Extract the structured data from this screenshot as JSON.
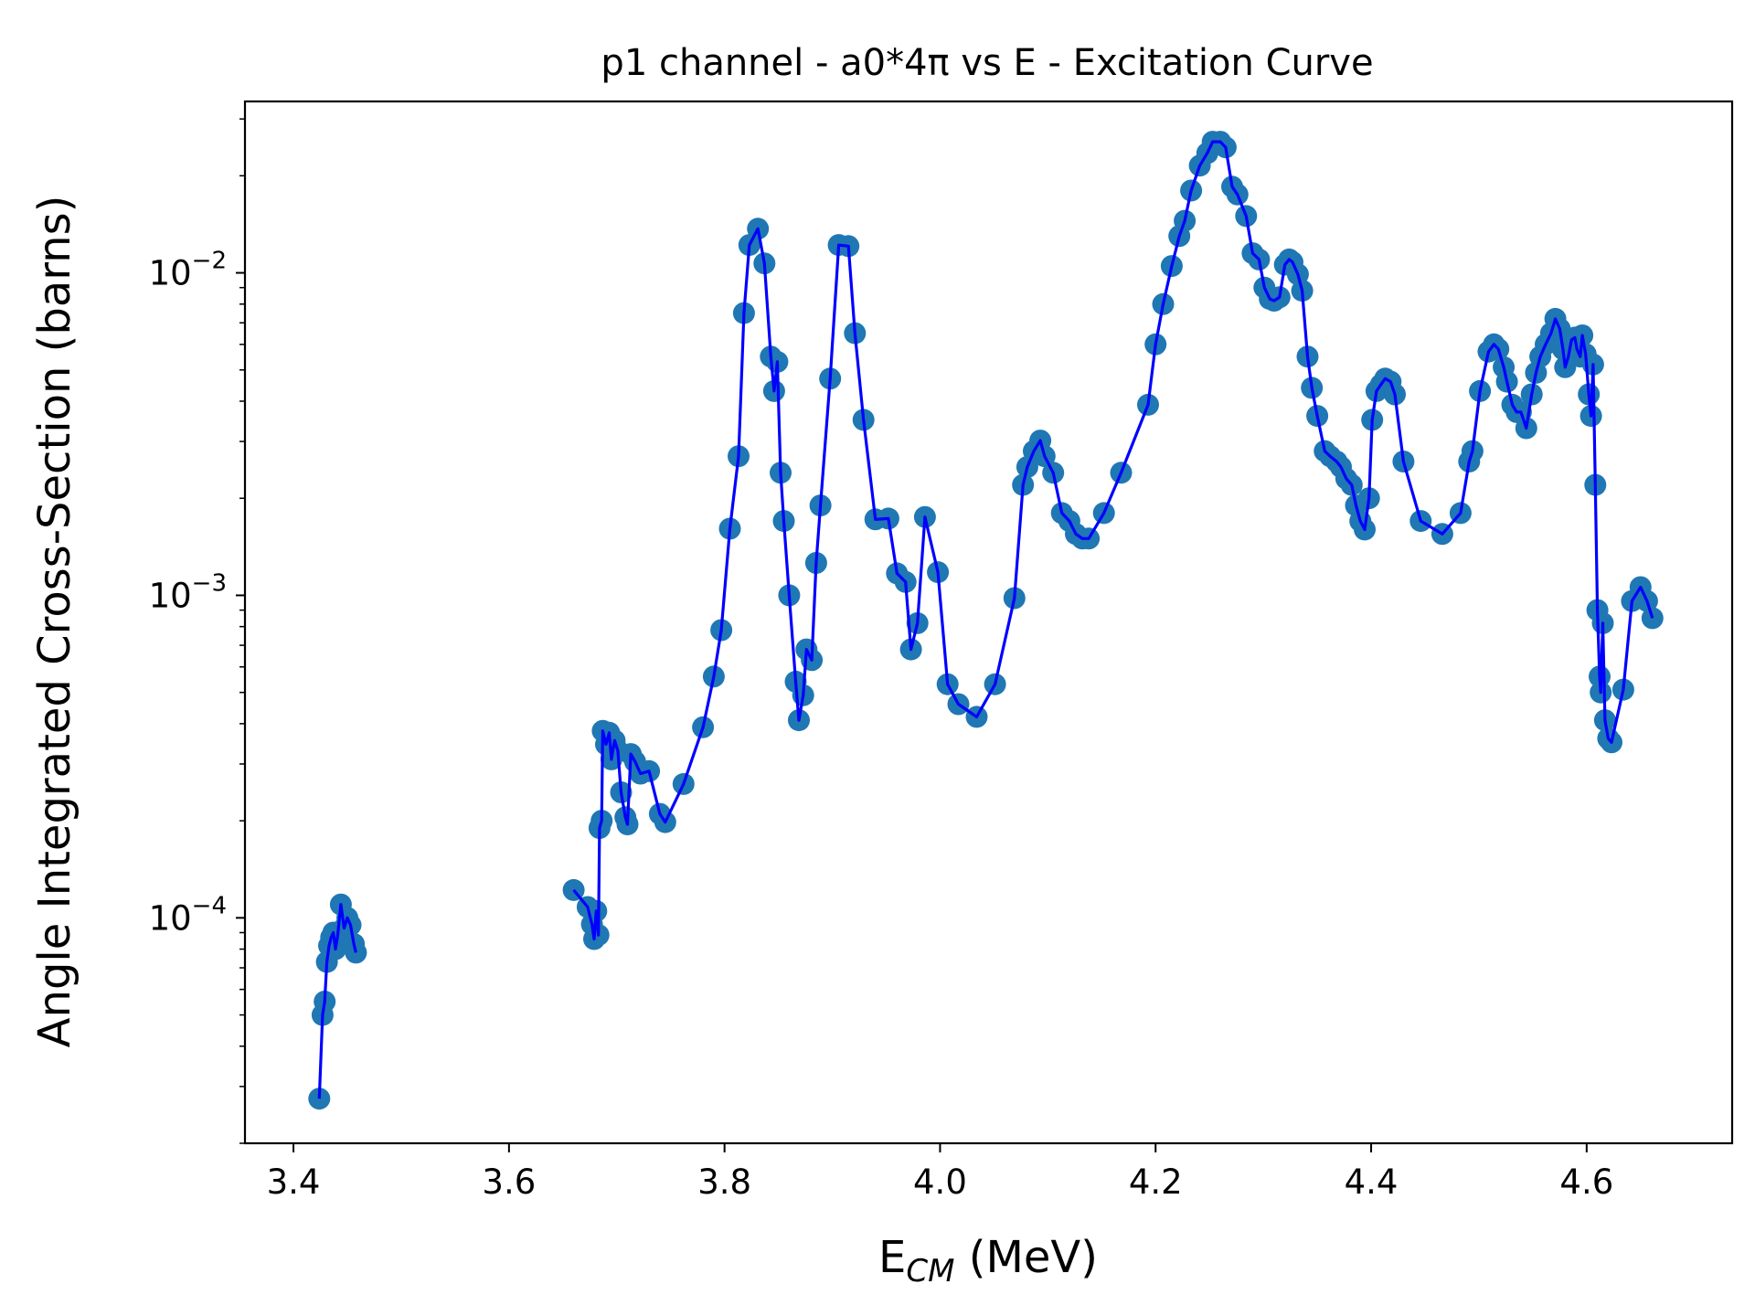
{
  "chart_data": {
    "type": "scatter",
    "title": "p1 channel - a0*4π vs E - Excitation Curve",
    "xlabel_main": "E",
    "xlabel_sub": "CM",
    "xlabel_unit": " (MeV)",
    "ylabel": "Angle Integrated Cross-Section (barns)",
    "xlim": [
      3.355,
      4.735
    ],
    "ylim": [
      2e-05,
      0.034
    ],
    "yscale": "log",
    "grid": false,
    "x_ticks": [
      "3.4",
      "3.6",
      "3.8",
      "4.0",
      "4.2",
      "4.4",
      "4.6"
    ],
    "x_tick_values": [
      3.4,
      3.6,
      3.8,
      4.0,
      4.2,
      4.4,
      4.6
    ],
    "y_ticks": [
      {
        "base": "10",
        "exp": "−4",
        "value": 0.0001
      },
      {
        "base": "10",
        "exp": "−3",
        "value": 0.001
      },
      {
        "base": "10",
        "exp": "−2",
        "value": 0.01
      }
    ],
    "colors": {
      "markers": "#1f77b4",
      "line": "#0000ff",
      "axes": "#000000"
    },
    "series": [
      {
        "role": "markers-and-line",
        "segments": [
          [
            [
              3.424,
              2.75e-05
            ],
            [
              3.427,
              5e-05
            ],
            [
              3.429,
              5.5e-05
            ],
            [
              3.431,
              7.3e-05
            ],
            [
              3.433,
              8.2e-05
            ],
            [
              3.435,
              8.7e-05
            ],
            [
              3.437,
              9e-05
            ],
            [
              3.439,
              8e-05
            ],
            [
              3.441,
              8.8e-05
            ],
            [
              3.444,
              0.00011
            ],
            [
              3.447,
              9.3e-05
            ],
            [
              3.45,
              0.0001
            ],
            [
              3.453,
              9.5e-05
            ],
            [
              3.456,
              8.3e-05
            ],
            [
              3.458,
              7.8e-05
            ]
          ],
          [
            [
              3.66,
              0.000122
            ],
            [
              3.673,
              0.000108
            ],
            [
              3.677,
              9.55e-05
            ],
            [
              3.679,
              8.6e-05
            ],
            [
              3.681,
              0.000105
            ],
            [
              3.683,
              8.85e-05
            ],
            [
              3.684,
              0.00019
            ],
            [
              3.686,
              0.0002
            ],
            [
              3.687,
              0.00038
            ],
            [
              3.69,
              0.000345
            ],
            [
              3.693,
              0.000375
            ],
            [
              3.695,
              0.00031
            ],
            [
              3.698,
              0.000355
            ],
            [
              3.701,
              0.00033
            ],
            [
              3.704,
              0.000245
            ],
            [
              3.708,
              0.000205
            ],
            [
              3.71,
              0.000195
            ],
            [
              3.713,
              0.000322
            ],
            [
              3.717,
              0.000305
            ],
            [
              3.722,
              0.00028
            ],
            [
              3.73,
              0.000285
            ],
            [
              3.74,
              0.00021
            ],
            [
              3.745,
              0.000198
            ],
            [
              3.762,
              0.00026
            ],
            [
              3.78,
              0.00039
            ],
            [
              3.79,
              0.00056
            ],
            [
              3.797,
              0.00078
            ],
            [
              3.805,
              0.00161
            ],
            [
              3.813,
              0.0027
            ],
            [
              3.818,
              0.0075
            ],
            [
              3.823,
              0.0122
            ],
            [
              3.831,
              0.0137
            ],
            [
              3.837,
              0.0107
            ],
            [
              3.843,
              0.0055
            ],
            [
              3.846,
              0.0043
            ],
            [
              3.849,
              0.0053
            ],
            [
              3.852,
              0.0024
            ],
            [
              3.855,
              0.0017
            ],
            [
              3.86,
              0.001
            ],
            [
              3.866,
              0.00054
            ],
            [
              3.869,
              0.00041
            ],
            [
              3.873,
              0.00049
            ],
            [
              3.876,
              0.00068
            ],
            [
              3.881,
              0.00063
            ],
            [
              3.885,
              0.00126
            ],
            [
              3.889,
              0.0019
            ],
            [
              3.898,
              0.0047
            ],
            [
              3.906,
              0.0122
            ],
            [
              3.915,
              0.0121
            ],
            [
              3.921,
              0.0065
            ],
            [
              3.929,
              0.0035
            ],
            [
              3.94,
              0.00172
            ],
            [
              3.952,
              0.00173
            ],
            [
              3.96,
              0.00117
            ],
            [
              3.968,
              0.0011
            ],
            [
              3.973,
              0.00068
            ],
            [
              3.979,
              0.00082
            ],
            [
              3.986,
              0.00175
            ],
            [
              3.998,
              0.00118
            ],
            [
              4.007,
              0.00053
            ],
            [
              4.017,
              0.00046
            ],
            [
              4.034,
              0.00042
            ],
            [
              4.051,
              0.00053
            ],
            [
              4.069,
              0.00098
            ],
            [
              4.077,
              0.0022
            ],
            [
              4.081,
              0.0025
            ],
            [
              4.087,
              0.0028
            ],
            [
              4.093,
              0.00302
            ],
            [
              4.097,
              0.0027
            ],
            [
              4.105,
              0.0024
            ],
            [
              4.113,
              0.0018
            ],
            [
              4.12,
              0.0017
            ],
            [
              4.126,
              0.00155
            ],
            [
              4.132,
              0.0015
            ],
            [
              4.138,
              0.0015
            ],
            [
              4.152,
              0.0018
            ],
            [
              4.168,
              0.0024
            ],
            [
              4.193,
              0.0039
            ],
            [
              4.2,
              0.006
            ],
            [
              4.207,
              0.008
            ],
            [
              4.215,
              0.0105
            ],
            [
              4.222,
              0.013
            ],
            [
              4.227,
              0.0145
            ],
            [
              4.233,
              0.018
            ],
            [
              4.241,
              0.0215
            ],
            [
              4.248,
              0.0235
            ],
            [
              4.253,
              0.0255
            ],
            [
              4.26,
              0.0255
            ],
            [
              4.265,
              0.0245
            ],
            [
              4.271,
              0.0185
            ],
            [
              4.276,
              0.0175
            ],
            [
              4.284,
              0.015
            ],
            [
              4.29,
              0.0115
            ],
            [
              4.296,
              0.011
            ],
            [
              4.301,
              0.009
            ],
            [
              4.306,
              0.0083
            ],
            [
              4.31,
              0.0082
            ],
            [
              4.315,
              0.0084
            ],
            [
              4.32,
              0.0106
            ],
            [
              4.324,
              0.011
            ],
            [
              4.327,
              0.0108
            ],
            [
              4.332,
              0.0099
            ],
            [
              4.336,
              0.0088
            ],
            [
              4.341,
              0.0055
            ],
            [
              4.345,
              0.0044
            ],
            [
              4.35,
              0.0036
            ],
            [
              4.357,
              0.0028
            ],
            [
              4.362,
              0.0027
            ],
            [
              4.368,
              0.0026
            ],
            [
              4.372,
              0.0025
            ],
            [
              4.377,
              0.0023
            ],
            [
              4.382,
              0.0022
            ],
            [
              4.386,
              0.0019
            ],
            [
              4.39,
              0.0017
            ],
            [
              4.394,
              0.0016
            ],
            [
              4.398,
              0.002
            ],
            [
              4.401,
              0.0035
            ],
            [
              4.405,
              0.0043
            ],
            [
              4.409,
              0.0045
            ],
            [
              4.413,
              0.0047
            ],
            [
              4.418,
              0.0046
            ],
            [
              4.422,
              0.0042
            ],
            [
              4.43,
              0.0026
            ],
            [
              4.446,
              0.0017
            ],
            [
              4.466,
              0.00155
            ],
            [
              4.483,
              0.0018
            ],
            [
              4.491,
              0.0026
            ],
            [
              4.494,
              0.0028
            ],
            [
              4.501,
              0.0043
            ],
            [
              4.509,
              0.0057
            ],
            [
              4.514,
              0.006
            ],
            [
              4.518,
              0.0058
            ],
            [
              4.523,
              0.0051
            ],
            [
              4.526,
              0.0046
            ],
            [
              4.531,
              0.0039
            ],
            [
              4.535,
              0.0037
            ],
            [
              4.539,
              0.0037
            ],
            [
              4.544,
              0.0033
            ],
            [
              4.549,
              0.0042
            ],
            [
              4.553,
              0.0049
            ],
            [
              4.557,
              0.0055
            ],
            [
              4.562,
              0.006
            ],
            [
              4.567,
              0.0065
            ],
            [
              4.571,
              0.0072
            ],
            [
              4.575,
              0.0067
            ],
            [
              4.578,
              0.0058
            ],
            [
              4.58,
              0.0051
            ],
            [
              4.583,
              0.0055
            ],
            [
              4.586,
              0.0062
            ],
            [
              4.589,
              0.0063
            ],
            [
              4.591,
              0.0058
            ],
            [
              4.594,
              0.0055
            ],
            [
              4.596,
              0.0064
            ],
            [
              4.599,
              0.0056
            ],
            [
              4.602,
              0.0042
            ],
            [
              4.604,
              0.0036
            ],
            [
              4.606,
              0.0052
            ],
            [
              4.608,
              0.0022
            ],
            [
              4.61,
              0.0009
            ],
            [
              4.612,
              0.00056
            ],
            [
              4.613,
              0.0005
            ],
            [
              4.615,
              0.00082
            ],
            [
              4.617,
              0.00041
            ],
            [
              4.62,
              0.00036
            ],
            [
              4.623,
              0.00035
            ],
            [
              4.634,
              0.00051
            ],
            [
              4.642,
              0.00096
            ],
            [
              4.65,
              0.00106
            ],
            [
              4.656,
              0.00096
            ],
            [
              4.661,
              0.00085
            ]
          ]
        ]
      }
    ]
  }
}
